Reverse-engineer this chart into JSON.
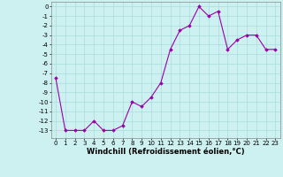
{
  "x": [
    0,
    1,
    2,
    3,
    4,
    5,
    6,
    7,
    8,
    9,
    10,
    11,
    12,
    13,
    14,
    15,
    16,
    17,
    18,
    19,
    20,
    21,
    22,
    23
  ],
  "y": [
    -7.5,
    -13,
    -13,
    -13,
    -12,
    -13,
    -13,
    -12.5,
    -10,
    -10.5,
    -9.5,
    -8,
    -4.5,
    -2.5,
    -2,
    0,
    -1,
    -0.5,
    -4.5,
    -3.5,
    -3,
    -3,
    -4.5,
    -4.5
  ],
  "xlabel": "Windchill (Refroidissement éolien,°C)",
  "ylim": [
    -13.8,
    0.5
  ],
  "xlim": [
    -0.5,
    23.5
  ],
  "yticks": [
    0,
    -1,
    -2,
    -3,
    -4,
    -5,
    -6,
    -7,
    -8,
    -9,
    -10,
    -11,
    -12,
    -13
  ],
  "xticks": [
    0,
    1,
    2,
    3,
    4,
    5,
    6,
    7,
    8,
    9,
    10,
    11,
    12,
    13,
    14,
    15,
    16,
    17,
    18,
    19,
    20,
    21,
    22,
    23
  ],
  "line_color": "#9900aa",
  "marker_color": "#9900aa",
  "bg_color": "#cdf0f0",
  "grid_color": "#aadddd",
  "tick_fontsize": 5.0,
  "xlabel_fontsize": 6.0
}
